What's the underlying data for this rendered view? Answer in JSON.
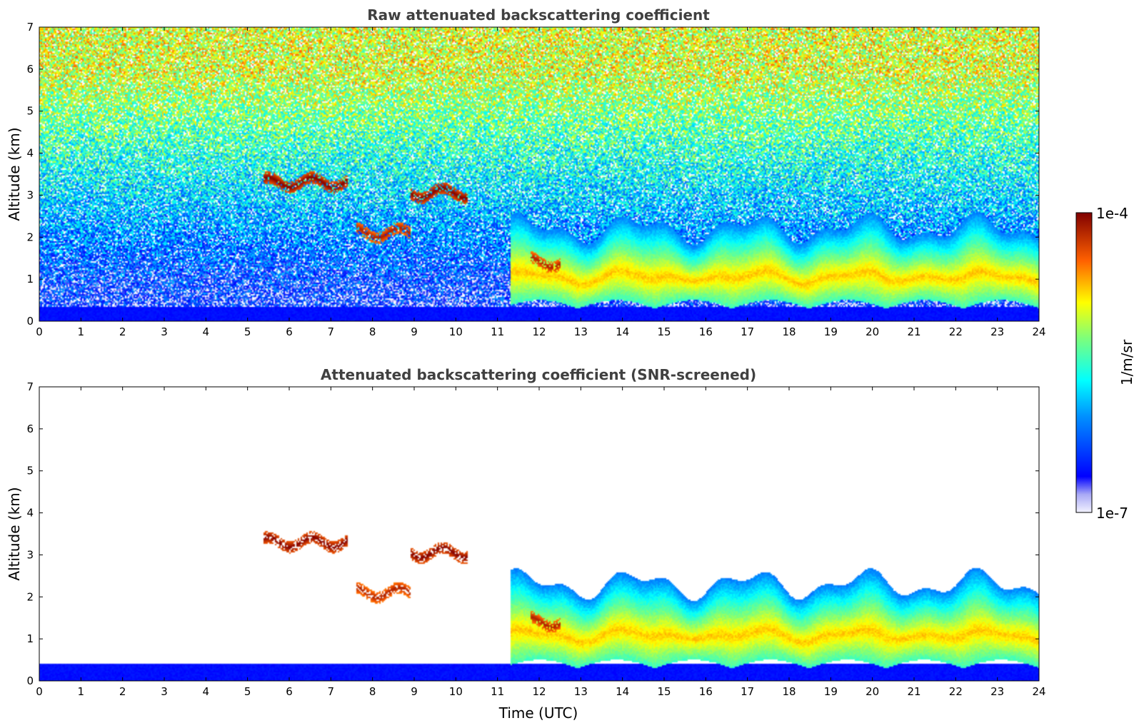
{
  "chart_data": [
    {
      "type": "heatmap",
      "title": "Raw attenuated backscattering coefficient",
      "xlabel": "",
      "ylabel": "Altitude (km)",
      "xlim": [
        0,
        24
      ],
      "ylim": [
        0,
        7
      ],
      "x_ticks": [
        0,
        1,
        2,
        3,
        4,
        5,
        6,
        7,
        8,
        9,
        10,
        11,
        12,
        13,
        14,
        15,
        16,
        17,
        18,
        19,
        20,
        21,
        22,
        23,
        24
      ],
      "y_ticks": [
        0,
        1,
        2,
        3,
        4,
        5,
        6,
        7
      ],
      "noise": true,
      "features": [
        {
          "kind": "boundary_layer",
          "x_start": 0,
          "x_end": 24,
          "top_km": 0.35,
          "level": 0.12
        },
        {
          "kind": "aerosol_layer",
          "x_start": 11.3,
          "x_end": 24,
          "top_km": 2.2,
          "level": 0.75
        },
        {
          "kind": "cloud",
          "x_start": 5.4,
          "x_end": 7.4,
          "y_km": 3.3,
          "level": 1.0
        },
        {
          "kind": "cloud",
          "x_start": 8.9,
          "x_end": 10.3,
          "y_km": 3.05,
          "level": 1.0
        },
        {
          "kind": "cloud",
          "x_start": 7.6,
          "x_end": 8.9,
          "y_km": 2.1,
          "level": 0.95
        },
        {
          "kind": "cloud",
          "x_start": 11.8,
          "x_end": 12.5,
          "y_km": 1.4,
          "level": 0.95
        }
      ]
    },
    {
      "type": "heatmap",
      "title": "Attenuated backscattering coefficient (SNR-screened)",
      "xlabel": "Time (UTC)",
      "ylabel": "Altitude (km)",
      "xlim": [
        0,
        24
      ],
      "ylim": [
        0,
        7
      ],
      "x_ticks": [
        0,
        1,
        2,
        3,
        4,
        5,
        6,
        7,
        8,
        9,
        10,
        11,
        12,
        13,
        14,
        15,
        16,
        17,
        18,
        19,
        20,
        21,
        22,
        23,
        24
      ],
      "y_ticks": [
        0,
        1,
        2,
        3,
        4,
        5,
        6,
        7
      ],
      "noise": false,
      "features": [
        {
          "kind": "boundary_layer",
          "x_start": 0,
          "x_end": 24,
          "top_km": 0.4,
          "level": 0.12
        },
        {
          "kind": "aerosol_layer",
          "x_start": 11.3,
          "x_end": 24,
          "top_km": 2.3,
          "level": 0.75
        },
        {
          "kind": "cloud",
          "x_start": 5.4,
          "x_end": 7.4,
          "y_km": 3.3,
          "level": 1.0
        },
        {
          "kind": "cloud",
          "x_start": 8.9,
          "x_end": 10.3,
          "y_km": 3.05,
          "level": 1.0
        },
        {
          "kind": "cloud",
          "x_start": 7.6,
          "x_end": 8.9,
          "y_km": 2.1,
          "level": 0.95
        },
        {
          "kind": "cloud",
          "x_start": 11.8,
          "x_end": 12.5,
          "y_km": 1.4,
          "level": 0.95
        }
      ]
    }
  ],
  "colorbar": {
    "label": "1/m/sr",
    "max_label": "1e-4",
    "min_label": "1e-7",
    "colormap": "jet",
    "scale": "log"
  }
}
